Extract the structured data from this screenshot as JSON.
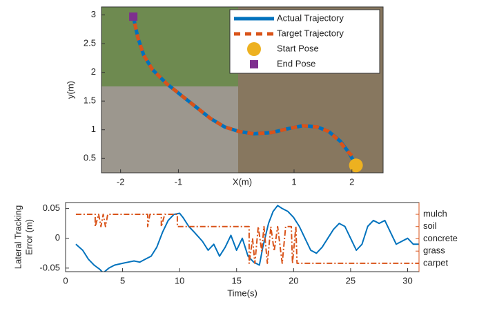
{
  "chart_data": [
    {
      "type": "line",
      "xlabel": "X(m)",
      "ylabel": "y(m)",
      "xlim": [
        -2.33,
        2.54
      ],
      "ylim": [
        0.25,
        3.14
      ],
      "xticks": [
        -2,
        -1,
        1,
        2
      ],
      "yticks": [
        0.5,
        1,
        1.5,
        2,
        2.5,
        3
      ],
      "legend": "upper right",
      "series": [
        {
          "name": "Actual Trajectory",
          "color": "#0072bd",
          "style": "solid",
          "x": [
            2.07,
            1.95,
            1.8,
            1.6,
            1.4,
            1.15,
            0.9,
            0.6,
            0.3,
            0.05,
            -0.2,
            -0.45,
            -0.7,
            -0.95,
            -1.2,
            -1.45,
            -1.6,
            -1.7,
            -1.78
          ],
          "y": [
            0.38,
            0.6,
            0.8,
            0.97,
            1.05,
            1.07,
            1.02,
            0.95,
            0.93,
            0.97,
            1.05,
            1.2,
            1.4,
            1.6,
            1.8,
            2.05,
            2.3,
            2.6,
            2.97
          ]
        },
        {
          "name": "Target Trajectory",
          "color": "#d95319",
          "style": "dashed",
          "x": [
            2.0,
            1.93,
            1.78,
            1.6,
            1.4,
            1.15,
            0.9,
            0.6,
            0.3,
            0.05,
            -0.2,
            -0.45,
            -0.7,
            -0.95,
            -1.2,
            -1.45,
            -1.6,
            -1.7,
            -1.78
          ],
          "y": [
            0.55,
            0.62,
            0.81,
            0.97,
            1.05,
            1.07,
            1.02,
            0.95,
            0.93,
            0.97,
            1.05,
            1.2,
            1.4,
            1.6,
            1.8,
            2.05,
            2.3,
            2.6,
            2.97
          ]
        },
        {
          "name": "Start Pose",
          "color": "#edb120",
          "marker": "circle",
          "x": [
            2.07
          ],
          "y": [
            0.38
          ]
        },
        {
          "name": "End Pose",
          "color": "#7e2f8e",
          "marker": "square",
          "x": [
            -1.78
          ],
          "y": [
            2.97
          ]
        }
      ]
    },
    {
      "type": "line",
      "xlabel": "Time(s)",
      "ylabel": [
        "Lateral Tracking",
        "Error (m)"
      ],
      "xlim": [
        0,
        31
      ],
      "ylim": [
        -0.056,
        0.06
      ],
      "y2lim": [
        0.32,
        5.96
      ],
      "xticks": [
        0,
        5,
        10,
        15,
        20,
        25,
        30
      ],
      "yticks": [
        -0.05,
        0,
        0.05
      ],
      "y2ticks": [
        {
          "value": 5,
          "label": "mulch"
        },
        {
          "value": 4,
          "label": "soil"
        },
        {
          "value": 3,
          "label": "concrete"
        },
        {
          "value": 2,
          "label": "grass"
        },
        {
          "value": 1,
          "label": "carpet"
        }
      ],
      "ycolor": "#0072bd",
      "y2color": "#d95319",
      "series": [
        {
          "color": "#0072bd",
          "style": "solid",
          "x": [
            0.9,
            1.5,
            2,
            2.5,
            3,
            3.3,
            3.8,
            4.3,
            5,
            5.5,
            6,
            6.5,
            7,
            7.5,
            8,
            8.5,
            9,
            9.5,
            10,
            10.3,
            10.8,
            11.3,
            12,
            12.5,
            13,
            13.5,
            14,
            14.5,
            15,
            15.5,
            16,
            16.5,
            17,
            17.3,
            17.8,
            18.2,
            18.6,
            19,
            19.5,
            20,
            20.5,
            21,
            21.5,
            22,
            22.5,
            23,
            23.5,
            24,
            24.5,
            25,
            25.5,
            26,
            26.5,
            27,
            27.5,
            28,
            28.5,
            29,
            29.5,
            30,
            30.5,
            31
          ],
          "y": [
            -0.01,
            -0.02,
            -0.035,
            -0.045,
            -0.052,
            -0.058,
            -0.05,
            -0.045,
            -0.042,
            -0.04,
            -0.038,
            -0.04,
            -0.035,
            -0.03,
            -0.015,
            0.01,
            0.03,
            0.04,
            0.042,
            0.035,
            0.02,
            0.01,
            -0.005,
            -0.02,
            -0.01,
            -0.03,
            -0.015,
            0.005,
            -0.02,
            0.0,
            -0.03,
            -0.04,
            -0.045,
            -0.015,
            0.025,
            0.045,
            0.055,
            0.05,
            0.045,
            0.035,
            0.02,
            0.0,
            -0.02,
            -0.025,
            -0.015,
            0.0,
            0.015,
            0.025,
            0.02,
            0.0,
            -0.02,
            -0.01,
            0.02,
            0.03,
            0.025,
            0.03,
            0.01,
            -0.01,
            -0.005,
            0.0,
            -0.01,
            -0.01
          ]
        },
        {
          "color": "#d95319",
          "style": "dashdot",
          "axis": "y2",
          "x": [
            0.9,
            2.6,
            2.6,
            2.9,
            3.1,
            3.3,
            3.5,
            3.7,
            7.2,
            7.2,
            7.4,
            8.4,
            8.4,
            8.7,
            9.8,
            9.8,
            10.2,
            16.1,
            16.1,
            16.4,
            16.6,
            16.9,
            17.2,
            17.4,
            17.7,
            18.0,
            18.3,
            18.6,
            19.0,
            19.3,
            19.8,
            19.9,
            20.2,
            20.3,
            31
          ],
          "y": [
            5,
            5,
            4,
            5,
            4,
            5,
            4,
            5,
            5,
            4,
            5,
            5,
            4,
            5,
            5,
            4,
            4,
            4,
            1,
            3,
            1,
            4,
            2,
            4,
            1,
            4,
            2,
            4,
            1,
            4,
            4,
            1,
            4,
            1,
            1
          ]
        }
      ]
    }
  ]
}
